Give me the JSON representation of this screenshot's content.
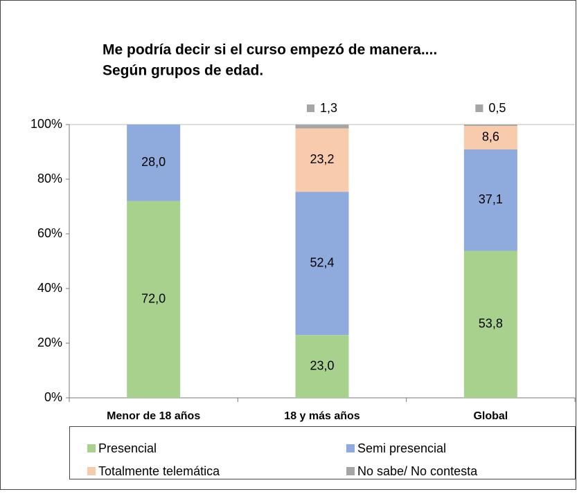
{
  "chart_data": {
    "type": "stacked-bar",
    "title": [
      "Me podría decir si el curso empezó de manera....",
      "Según grupos de edad."
    ],
    "categories": [
      "Menor de 18 años",
      "18 y más años",
      "Global"
    ],
    "series": [
      {
        "name": "Presencial",
        "color": "#a9d18e",
        "values": [
          72.0,
          23.0,
          53.8
        ],
        "value_labels": [
          "72,0",
          "23,0",
          "53,8"
        ]
      },
      {
        "name": "Semi presencial",
        "color": "#8faadc",
        "values": [
          28.0,
          52.4,
          37.1
        ],
        "value_labels": [
          "28,0",
          "52,4",
          "37,1"
        ]
      },
      {
        "name": "Totalmente telemática",
        "color": "#f8cbad",
        "values": [
          null,
          23.2,
          8.6
        ],
        "value_labels": [
          null,
          "23,2",
          "8,6"
        ]
      },
      {
        "name": "No sabe/ No contesta",
        "color": "#a5a5a5",
        "values": [
          null,
          1.3,
          0.5
        ],
        "value_labels": [
          null,
          "1,3",
          "0,5"
        ]
      }
    ],
    "ylim": [
      0,
      100
    ],
    "yticks": [
      {
        "value": 0,
        "label": "0%"
      },
      {
        "value": 20,
        "label": "20%"
      },
      {
        "value": 40,
        "label": "40%"
      },
      {
        "value": 60,
        "label": "60%"
      },
      {
        "value": 80,
        "label": "80%"
      },
      {
        "value": 100,
        "label": "100%"
      }
    ],
    "grid": false
  }
}
